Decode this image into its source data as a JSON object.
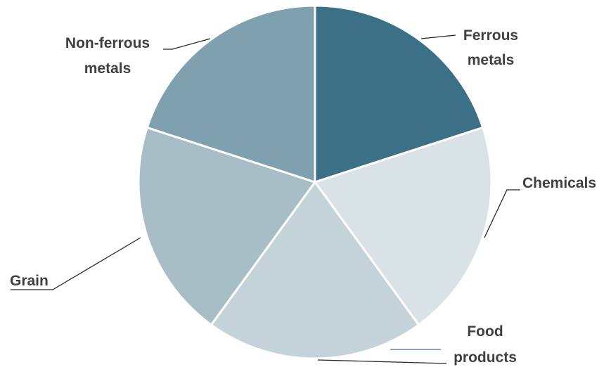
{
  "chart_data": {
    "type": "pie",
    "title": "",
    "slices": [
      {
        "label_lines": [
          "Ferrous",
          "metals"
        ],
        "value": 20,
        "color": "#3b7086"
      },
      {
        "label_lines": [
          "Chemicals"
        ],
        "value": 20,
        "color": "#d9e3e7"
      },
      {
        "label_lines": [
          "Food",
          "products"
        ],
        "value": 20,
        "color": "#c3d3d9"
      },
      {
        "label_lines": [
          "Grain"
        ],
        "value": 20,
        "color": "#a7bec7"
      },
      {
        "label_lines": [
          "Non-ferrous",
          "metals"
        ],
        "value": 20,
        "color": "#7ea0af"
      }
    ]
  }
}
